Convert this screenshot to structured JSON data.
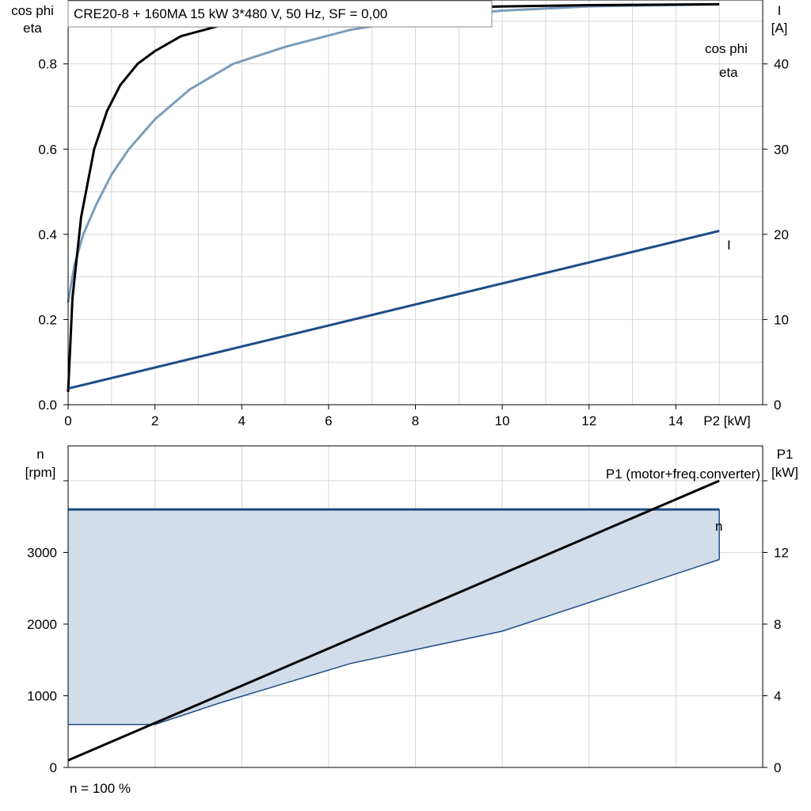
{
  "title": "CRE20-8 + 160MA   15 kW   3*480 V, 50 Hz, SF = 0,00",
  "footer": "n = 100 %",
  "colors": {
    "eta": "#000000",
    "cos_phi": "#7b9dbb",
    "current": "#1f4e86",
    "speed_line": "#1f4e86",
    "speed_fill": "#d1dde9",
    "p1": "#000000",
    "grid": "#d6d6d6"
  },
  "chart_data": [
    {
      "type": "line",
      "name": "efficiency-chart",
      "ylabel_left_line1": "cos phi",
      "ylabel_left_line2": "eta",
      "ylabel_right_line1": "I",
      "ylabel_right_line2": "[A]",
      "xlabel": "P2 [kW]",
      "xlim": [
        0,
        16
      ],
      "ylim_left": [
        0,
        0.95
      ],
      "ylim_right": [
        0,
        47.5
      ],
      "x_ticks": [
        "0",
        "2",
        "4",
        "6",
        "8",
        "10",
        "12",
        "14"
      ],
      "y_ticks_left": [
        "0.0",
        "0.2",
        "0.4",
        "0.6",
        "0.8"
      ],
      "y_ticks_right": [
        "0",
        "10",
        "20",
        "30",
        "40"
      ],
      "grid": true,
      "series": [
        {
          "name": "cos phi",
          "axis": "left",
          "color_key": "cos_phi",
          "x": [
            0,
            0.15,
            0.35,
            0.65,
            1.0,
            1.4,
            2.0,
            2.8,
            3.8,
            5.0,
            6.5,
            8.0,
            10.0,
            12.0,
            15.0
          ],
          "y": [
            0.24,
            0.33,
            0.4,
            0.47,
            0.54,
            0.6,
            0.67,
            0.74,
            0.8,
            0.84,
            0.88,
            0.905,
            0.925,
            0.935,
            0.94
          ]
        },
        {
          "name": "eta",
          "axis": "left",
          "color_key": "eta",
          "x": [
            0,
            0.1,
            0.3,
            0.6,
            0.9,
            1.2,
            1.6,
            2.0,
            2.6,
            3.5,
            4.5,
            6.0,
            8.0,
            10.0,
            12.0,
            15.0
          ],
          "y": [
            0.03,
            0.25,
            0.44,
            0.6,
            0.69,
            0.75,
            0.8,
            0.83,
            0.865,
            0.89,
            0.905,
            0.92,
            0.93,
            0.935,
            0.938,
            0.94
          ]
        },
        {
          "name": "I",
          "axis": "right",
          "color_key": "current",
          "x": [
            0,
            15.0
          ],
          "y": [
            1.9,
            20.4
          ]
        }
      ]
    },
    {
      "type": "area",
      "name": "speed-power-chart",
      "ylabel_left_line1": "n",
      "ylabel_left_line2": "[rpm]",
      "ylabel_right_line1": "P1",
      "ylabel_right_line2": "[kW]",
      "xlim": [
        0,
        16
      ],
      "ylim_left": [
        0,
        4000
      ],
      "ylim_right": [
        0,
        16
      ],
      "y_ticks_left": [
        "0",
        "1000",
        "2000",
        "3000"
      ],
      "y_ticks_right": [
        "0",
        "4",
        "8",
        "12"
      ],
      "grid": true,
      "speed_band": {
        "name": "n",
        "upper_x": [
          0,
          15.0
        ],
        "upper_y": [
          3600,
          3600
        ],
        "lower_x": [
          0,
          2.0,
          3.5,
          6.5,
          10.0,
          15.0
        ],
        "lower_y": [
          600,
          600,
          900,
          1450,
          1900,
          2900
        ]
      },
      "series": [
        {
          "name": "P1 (motor+freq.converter)",
          "axis": "right",
          "color_key": "p1",
          "x": [
            0,
            15.0
          ],
          "y": [
            0.4,
            16.0
          ]
        }
      ]
    }
  ]
}
